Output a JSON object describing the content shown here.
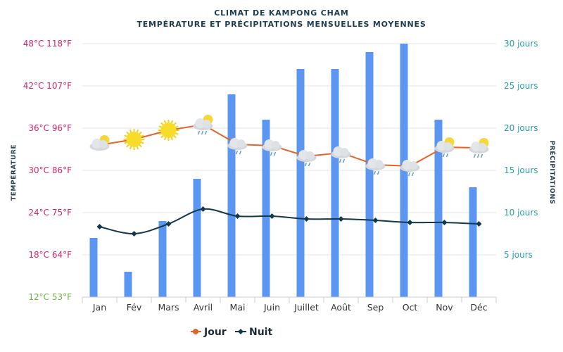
{
  "chart_data": {
    "type": "bar+line",
    "title": "CLIMAT DE KAMPONG CHAM",
    "subtitle": "TEMPÉRATURE ET PRÉCIPITATIONS MENSUELLES MOYENNES",
    "categories": [
      "Jan",
      "Fév",
      "Mars",
      "Avril",
      "Mai",
      "Juin",
      "Juillet",
      "Août",
      "Sep",
      "Oct",
      "Nov",
      "Déc"
    ],
    "ylabel_left": "TEMPÉRATURE",
    "ylabel_right": "PRÉCIPITATIONS",
    "ylim_left": [
      12,
      48
    ],
    "ylim_right": [
      0,
      30
    ],
    "left_ticks": [
      "12°C 53°F",
      "18°C 64°F",
      "24°C 75°F",
      "30°C 86°F",
      "36°C 96°F",
      "42°C 107°F",
      "48°C 118°F"
    ],
    "left_tick_values": [
      12,
      18,
      24,
      30,
      36,
      42,
      48
    ],
    "right_ticks": [
      "5 jours",
      "10 jours",
      "15 jours",
      "20 jours",
      "25 jours",
      "30 jours"
    ],
    "right_tick_values": [
      5,
      10,
      15,
      20,
      25,
      30
    ],
    "precip_days": [
      7,
      3,
      9,
      14,
      24,
      21,
      27,
      27,
      29,
      30,
      21,
      13
    ],
    "series": [
      {
        "name": "Jour",
        "values": [
          33.6,
          34.4,
          35.7,
          36.5,
          33.7,
          33.5,
          32.0,
          32.5,
          30.8,
          30.6,
          33.3,
          33.2
        ],
        "color": "#e3642a"
      },
      {
        "name": "Nuit",
        "values": [
          22.0,
          21.0,
          22.4,
          24.5,
          23.5,
          23.5,
          23.1,
          23.1,
          22.9,
          22.6,
          22.6,
          22.4
        ],
        "color": "#12384a"
      }
    ],
    "weather_icons": [
      "sun-cloud",
      "sun",
      "sun",
      "sun-cloud-rain",
      "cloud-rain",
      "cloud-rain",
      "cloud-rain",
      "cloud-rain",
      "cloud-rain",
      "cloud-rain",
      "sun-cloud-rain",
      "sun-cloud-rain"
    ],
    "grid": true,
    "legend": "bottom",
    "colors": {
      "bars": "#5b96f2",
      "left_axis": "#d6246e",
      "left_axis_min": "#6bb544",
      "right_axis": "#2a9fa6",
      "title": "#1d3c4e"
    }
  }
}
